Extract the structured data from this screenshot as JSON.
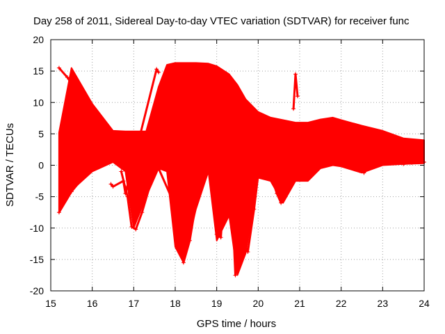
{
  "chart_data": {
    "type": "scatter",
    "title": "Day 258 of 2011, Sidereal Day-to-day VTEC variation (SDTVAR) for receiver func",
    "xlabel": "GPS time / hours",
    "ylabel": "SDTVAR / TECUs",
    "xlim": [
      15,
      24
    ],
    "ylim": [
      -20,
      20
    ],
    "xticks": [
      15,
      16,
      17,
      18,
      19,
      20,
      21,
      22,
      23,
      24
    ],
    "yticks": [
      -20,
      -15,
      -10,
      -5,
      0,
      5,
      10,
      15,
      20
    ],
    "grid": true,
    "marker": "+",
    "color": "#ff0000",
    "envelope": {
      "x": [
        15.2,
        15.5,
        16.0,
        16.5,
        16.8,
        17.0,
        17.3,
        17.6,
        17.8,
        18.0,
        18.2,
        18.5,
        18.8,
        19.0,
        19.3,
        19.5,
        19.7,
        20.0,
        20.3,
        20.6,
        20.9,
        21.2,
        21.5,
        21.8,
        22.0,
        22.5,
        23.0,
        23.5,
        24.0
      ],
      "upper": [
        5.2,
        15.5,
        9.8,
        5.5,
        5.4,
        5.4,
        5.4,
        12.5,
        16.0,
        16.3,
        16.3,
        16.3,
        16.2,
        15.8,
        14.5,
        12.8,
        10.5,
        8.5,
        7.6,
        7.2,
        6.8,
        6.8,
        7.3,
        7.6,
        7.2,
        6.3,
        5.5,
        4.3,
        4.0
      ],
      "lower": [
        -7.5,
        -4.0,
        -1.0,
        0.5,
        -1.0,
        -10.0,
        -5.0,
        -0.5,
        -1.0,
        -13.0,
        -15.5,
        -7.0,
        -1.0,
        -12.0,
        -8.0,
        -17.5,
        -14.0,
        -2.0,
        -2.5,
        -6.0,
        -2.5,
        -2.5,
        -0.5,
        0.0,
        -0.2,
        -1.2,
        0.0,
        0.2,
        0.3
      ]
    },
    "traces": [
      {
        "x": [
          15.2,
          15.4,
          15.6,
          15.8,
          16.0,
          16.2,
          16.4
        ],
        "y": [
          15.5,
          14.0,
          12.0,
          9.8,
          7.5,
          5.3,
          3.5
        ]
      },
      {
        "x": [
          15.2,
          15.5,
          15.8,
          16.1,
          16.4,
          16.7,
          17.0
        ],
        "y": [
          -7.5,
          -4.2,
          -1.8,
          0.0,
          1.5,
          2.5,
          3.2
        ]
      },
      {
        "x": [
          16.7,
          16.85,
          16.95,
          17.05,
          17.2,
          17.4,
          17.6
        ],
        "y": [
          -1.0,
          -5.0,
          -9.8,
          -10.2,
          -7.5,
          -3.0,
          0.5
        ]
      },
      {
        "x": [
          17.6,
          17.9,
          18.05,
          18.2,
          18.35,
          18.5,
          18.7
        ],
        "y": [
          -0.5,
          -5.0,
          -10.0,
          -15.5,
          -12.0,
          -6.0,
          -1.0
        ]
      },
      {
        "x": [
          18.9,
          19.0,
          19.1,
          19.2
        ],
        "y": [
          -1.0,
          -11.0,
          -11.5,
          -2.0
        ]
      },
      {
        "x": [
          19.3,
          19.4,
          19.45,
          19.5,
          19.6
        ],
        "y": [
          -1.0,
          -10.0,
          -17.5,
          -15.0,
          -3.0
        ]
      },
      {
        "x": [
          19.55,
          19.65,
          19.75,
          19.9,
          20.0
        ],
        "y": [
          -2.0,
          -12.0,
          -13.8,
          -7.0,
          -1.5
        ]
      },
      {
        "x": [
          20.3,
          20.45,
          20.55,
          20.65,
          20.75
        ],
        "y": [
          -1.5,
          -4.5,
          -6.0,
          -4.0,
          -1.0
        ]
      },
      {
        "x": [
          20.85,
          20.9,
          20.95
        ],
        "y": [
          9.0,
          14.5,
          11.0
        ]
      },
      {
        "x": [
          22.3,
          22.45,
          22.55,
          22.65
        ],
        "y": [
          -0.2,
          -0.9,
          -1.2,
          -0.5
        ]
      },
      {
        "x": [
          23.3,
          23.5,
          23.7,
          23.9,
          24.0
        ],
        "y": [
          0.4,
          0.2,
          0.4,
          0.6,
          0.5
        ]
      },
      {
        "x": [
          16.45,
          16.5,
          16.75,
          16.8,
          17.55,
          17.6
        ],
        "y": [
          -3.0,
          -3.4,
          -2.5,
          -4.5,
          15.3,
          14.8
        ]
      }
    ]
  }
}
